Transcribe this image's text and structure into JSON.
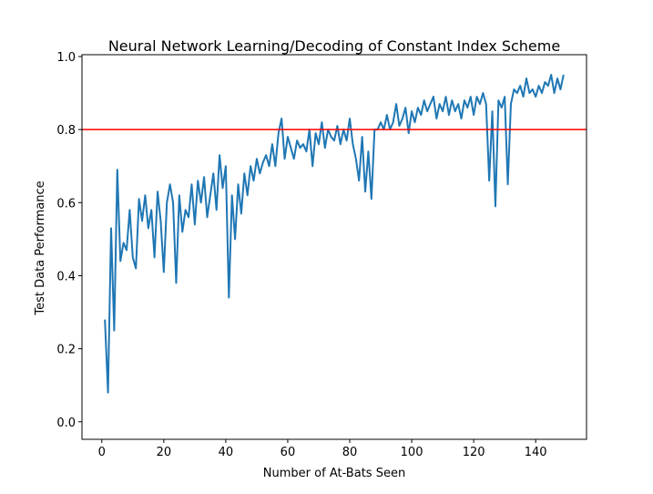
{
  "chart_data": {
    "type": "line",
    "title": "Neural Network Learning/Decoding of Constant Index Scheme",
    "x_label": "Number of At-Bats Seen",
    "y_label": "Test Data Performance",
    "x": [
      1,
      2,
      3,
      4,
      5,
      6,
      7,
      8,
      9,
      10,
      11,
      12,
      13,
      14,
      15,
      16,
      17,
      18,
      19,
      20,
      21,
      22,
      23,
      24,
      25,
      26,
      27,
      28,
      29,
      30,
      31,
      32,
      33,
      34,
      35,
      36,
      37,
      38,
      39,
      40,
      41,
      42,
      43,
      44,
      45,
      46,
      47,
      48,
      49,
      50,
      51,
      52,
      53,
      54,
      55,
      56,
      57,
      58,
      59,
      60,
      61,
      62,
      63,
      64,
      65,
      66,
      67,
      68,
      69,
      70,
      71,
      72,
      73,
      74,
      75,
      76,
      77,
      78,
      79,
      80,
      81,
      82,
      83,
      84,
      85,
      86,
      87,
      88,
      89,
      90,
      91,
      92,
      93,
      94,
      95,
      96,
      97,
      98,
      99,
      100,
      101,
      102,
      103,
      104,
      105,
      106,
      107,
      108,
      109,
      110,
      111,
      112,
      113,
      114,
      115,
      116,
      117,
      118,
      119,
      120,
      121,
      122,
      123,
      124,
      125,
      126,
      127,
      128,
      129,
      130,
      131,
      132,
      133,
      134,
      135,
      136,
      137,
      138,
      139,
      140,
      141,
      142,
      143,
      144,
      145,
      146,
      147,
      148,
      149
    ],
    "series": [
      {
        "color": "#1f77b4",
        "values": [
          0.28,
          0.08,
          0.53,
          0.25,
          0.69,
          0.44,
          0.49,
          0.47,
          0.58,
          0.45,
          0.42,
          0.61,
          0.55,
          0.62,
          0.53,
          0.58,
          0.45,
          0.63,
          0.55,
          0.41,
          0.6,
          0.65,
          0.6,
          0.38,
          0.62,
          0.52,
          0.58,
          0.56,
          0.65,
          0.54,
          0.66,
          0.6,
          0.67,
          0.56,
          0.62,
          0.68,
          0.58,
          0.73,
          0.64,
          0.7,
          0.34,
          0.62,
          0.5,
          0.65,
          0.57,
          0.68,
          0.62,
          0.7,
          0.66,
          0.72,
          0.68,
          0.71,
          0.73,
          0.7,
          0.76,
          0.7,
          0.79,
          0.83,
          0.72,
          0.78,
          0.75,
          0.72,
          0.77,
          0.75,
          0.76,
          0.74,
          0.8,
          0.7,
          0.79,
          0.76,
          0.82,
          0.75,
          0.8,
          0.78,
          0.77,
          0.81,
          0.76,
          0.8,
          0.77,
          0.83,
          0.76,
          0.72,
          0.66,
          0.78,
          0.63,
          0.74,
          0.61,
          0.8,
          0.8,
          0.82,
          0.8,
          0.84,
          0.8,
          0.82,
          0.87,
          0.81,
          0.83,
          0.86,
          0.79,
          0.85,
          0.82,
          0.86,
          0.84,
          0.88,
          0.85,
          0.87,
          0.89,
          0.83,
          0.87,
          0.85,
          0.89,
          0.84,
          0.88,
          0.85,
          0.87,
          0.83,
          0.88,
          0.86,
          0.89,
          0.84,
          0.89,
          0.87,
          0.9,
          0.87,
          0.66,
          0.85,
          0.59,
          0.88,
          0.86,
          0.89,
          0.65,
          0.87,
          0.91,
          0.9,
          0.92,
          0.89,
          0.94,
          0.9,
          0.91,
          0.89,
          0.92,
          0.9,
          0.93,
          0.92,
          0.95,
          0.9,
          0.94,
          0.91,
          0.95
        ]
      }
    ],
    "hline": {
      "value": 0.8,
      "color": "#ff0000"
    },
    "xlim": [
      -6.4,
      156.4
    ],
    "ylim": [
      -0.048,
      1.005
    ],
    "xticks": [
      0,
      20,
      40,
      60,
      80,
      100,
      120,
      140
    ],
    "yticks": [
      {
        "value": 0,
        "label": "0.0"
      },
      0.2,
      0.4,
      0.6,
      0.8,
      {
        "value": 1,
        "label": "1.0"
      }
    ]
  }
}
